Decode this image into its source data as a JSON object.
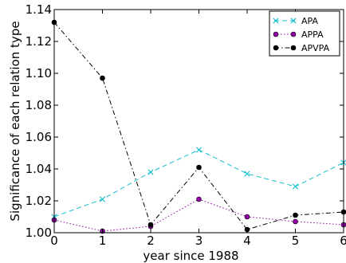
{
  "chart_data": {
    "type": "line",
    "x": [
      0,
      1,
      2,
      3,
      4,
      5,
      6
    ],
    "xlabel": "year since 1988",
    "ylabel": "Significance of each relation type",
    "xlim": [
      0,
      6
    ],
    "ylim": [
      1.0,
      1.14
    ],
    "xticks": [
      "0",
      "1",
      "2",
      "3",
      "4",
      "5",
      "6"
    ],
    "yticks": [
      "1.00",
      "1.02",
      "1.04",
      "1.06",
      "1.08",
      "1.10",
      "1.12",
      "1.14"
    ],
    "grid": false,
    "legend_position": "top-right",
    "series": [
      {
        "name": "APA",
        "values": [
          1.01,
          1.021,
          1.038,
          1.052,
          1.037,
          1.029,
          1.044
        ],
        "color": "#17becf",
        "line_style": "dashed",
        "marker": "x"
      },
      {
        "name": "APPA",
        "values": [
          1.008,
          1.001,
          1.004,
          1.021,
          1.01,
          1.007,
          1.005
        ],
        "color": "#9400a8",
        "line_style": "dotted",
        "marker": "circle"
      },
      {
        "name": "APVPA",
        "values": [
          1.132,
          1.097,
          1.005,
          1.041,
          1.002,
          1.011,
          1.013
        ],
        "color": "#000000",
        "line_style": "dashdot",
        "marker": "circle"
      }
    ]
  }
}
